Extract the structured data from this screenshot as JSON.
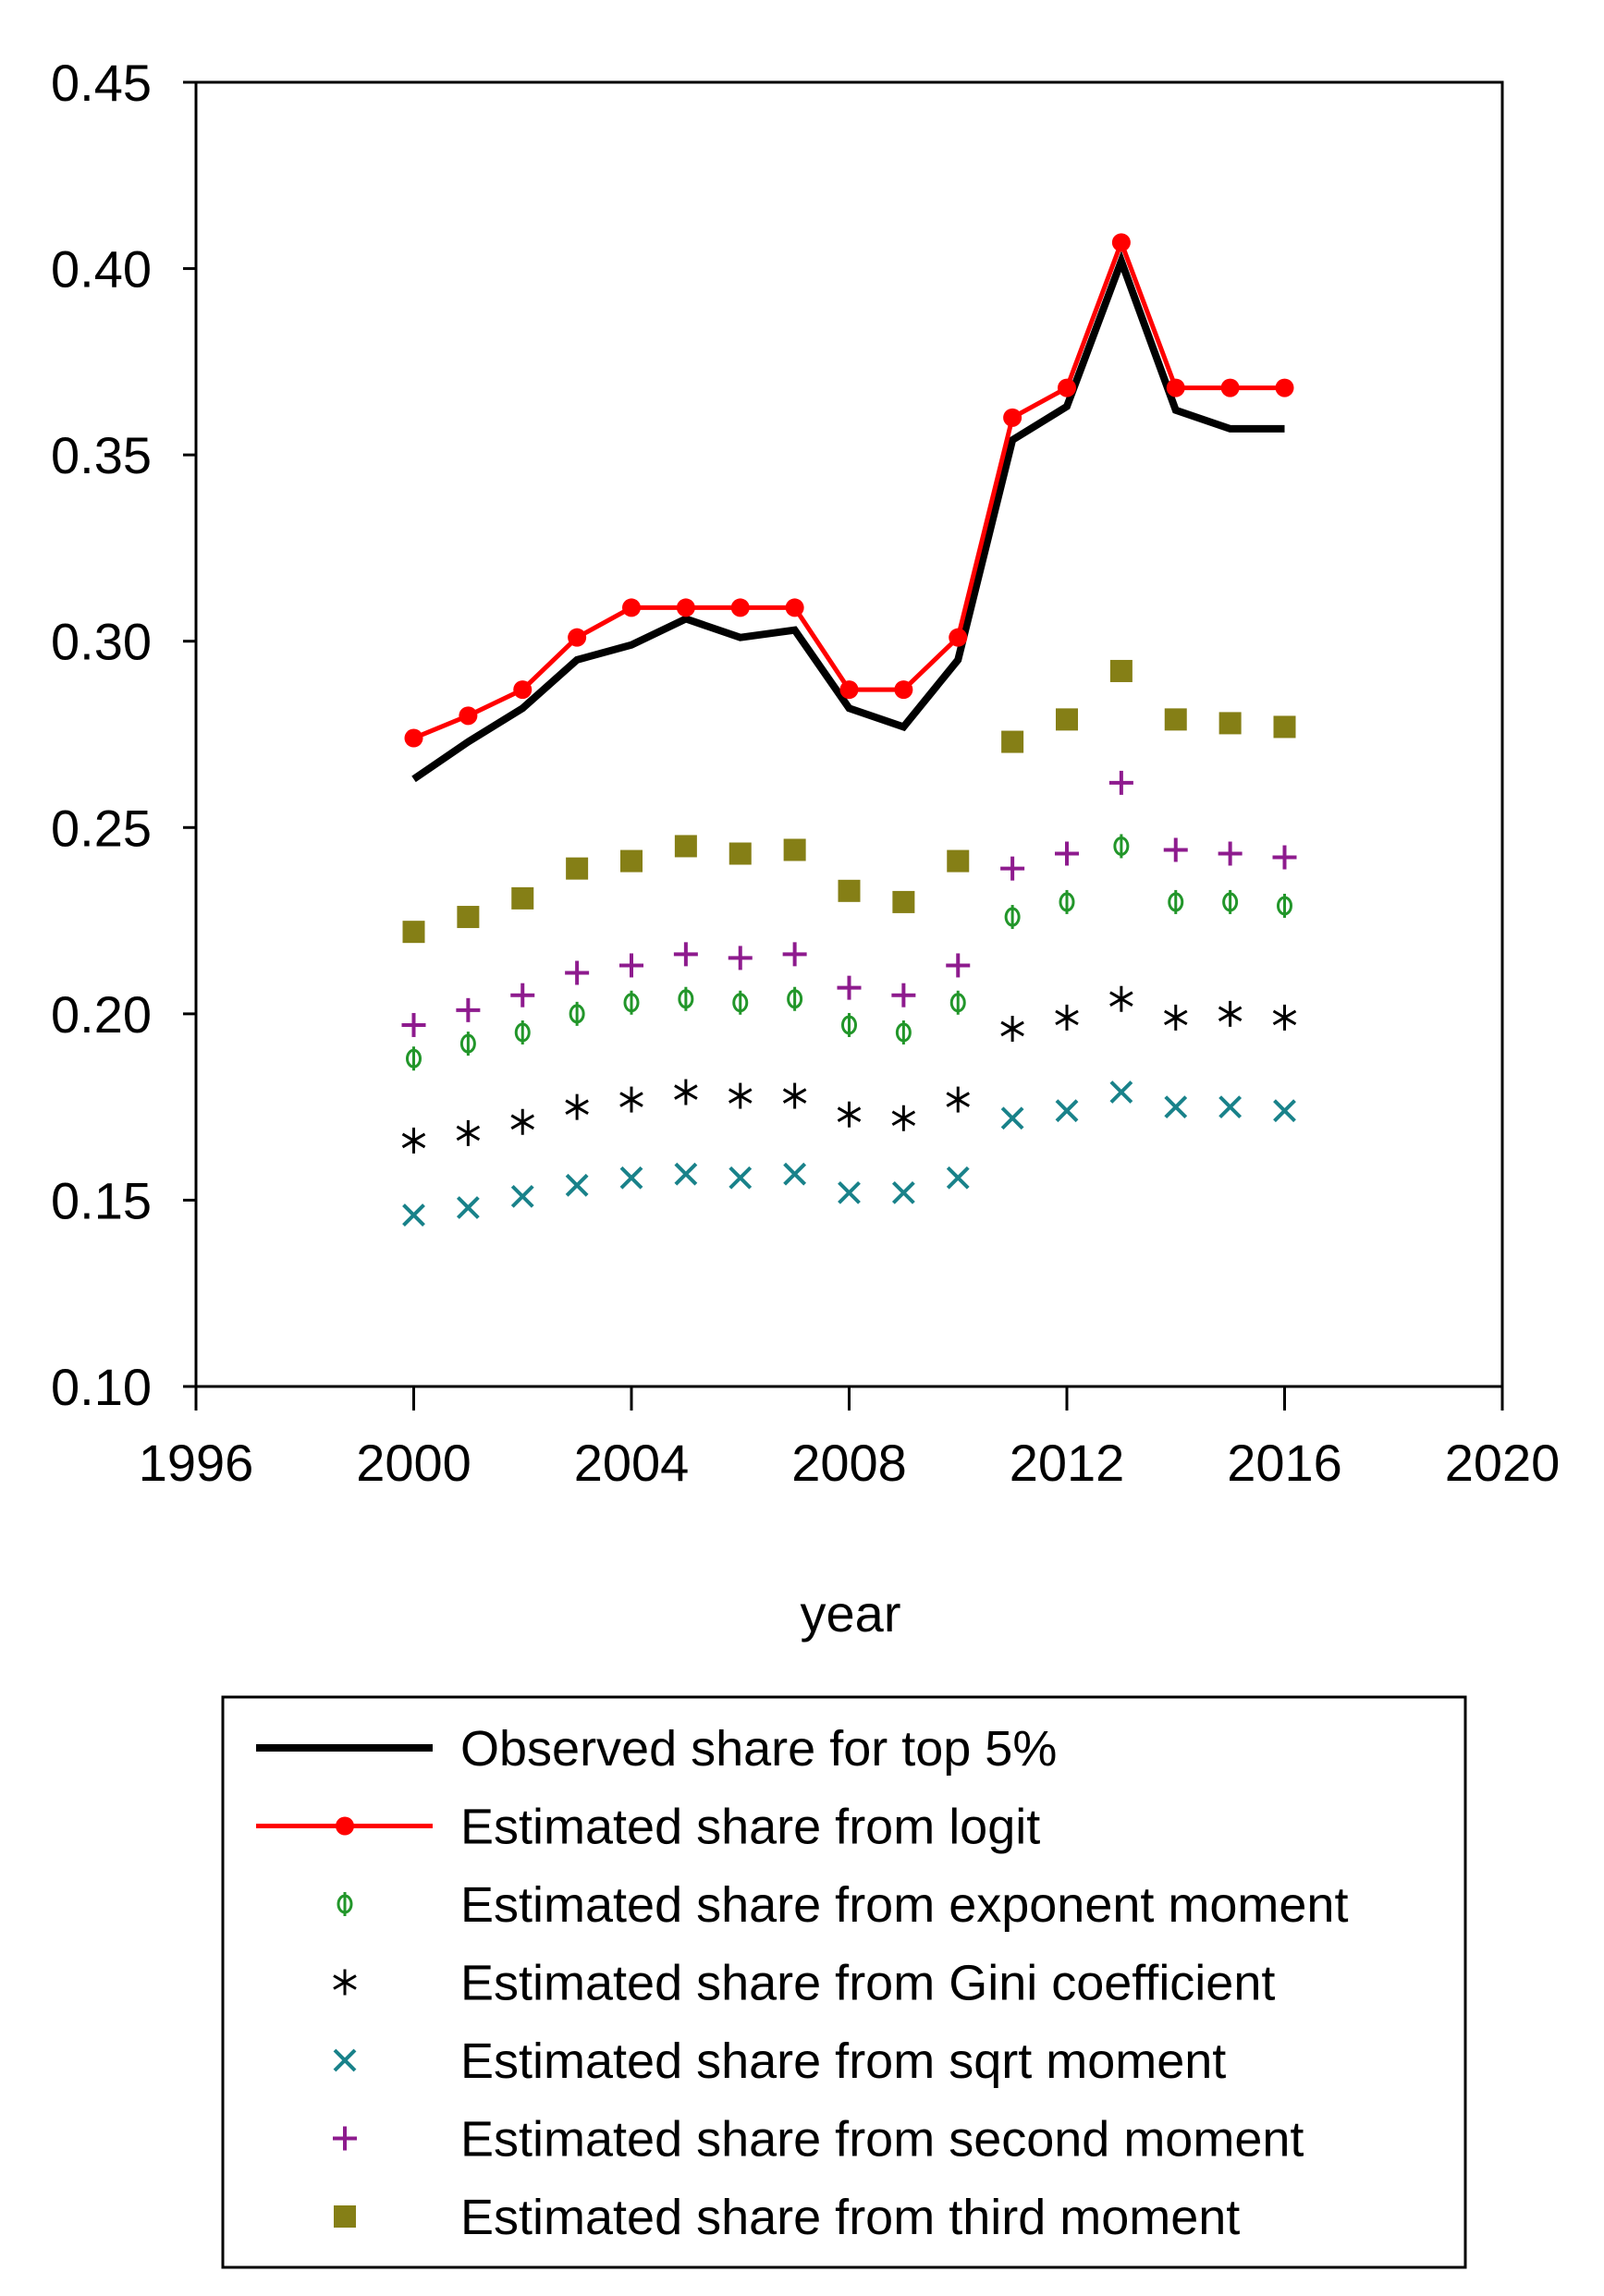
{
  "chart_data": {
    "type": "line",
    "title": "",
    "xlabel": "year",
    "ylabel": "",
    "xlim": [
      1996,
      2020
    ],
    "ylim": [
      0.1,
      0.45
    ],
    "x_ticks": [
      "1996",
      "2000",
      "2004",
      "2008",
      "2012",
      "2016",
      "2020"
    ],
    "y_ticks": [
      "0.10",
      "0.15",
      "0.20",
      "0.25",
      "0.30",
      "0.35",
      "0.40",
      "0.45"
    ],
    "x": [
      2000,
      2001,
      2002,
      2003,
      2004,
      2005,
      2006,
      2007,
      2008,
      2009,
      2010,
      2011,
      2012,
      2013,
      2014,
      2015,
      2016
    ],
    "series": [
      {
        "name": "Observed share for top 5%",
        "style": "line",
        "marker": "none",
        "color": "#000000",
        "values": [
          0.263,
          0.273,
          0.282,
          0.295,
          0.299,
          0.306,
          0.301,
          0.303,
          0.282,
          0.277,
          0.295,
          0.354,
          0.363,
          0.402,
          0.362,
          0.357,
          0.357
        ]
      },
      {
        "name": "Estimated share from logit",
        "style": "line",
        "marker": "dot",
        "color": "#ff0000",
        "values": [
          0.274,
          0.28,
          0.287,
          0.301,
          0.309,
          0.309,
          0.309,
          0.309,
          0.287,
          0.287,
          0.301,
          0.36,
          0.368,
          0.407,
          0.368,
          0.368,
          0.368
        ]
      },
      {
        "name": "Estimated share from exponent moment",
        "style": "markers",
        "marker": "phi",
        "color": "#22962a",
        "values": [
          0.188,
          0.192,
          0.195,
          0.2,
          0.203,
          0.204,
          0.203,
          0.204,
          0.197,
          0.195,
          0.203,
          0.226,
          0.23,
          0.245,
          0.23,
          0.23,
          0.229
        ]
      },
      {
        "name": "Estimated share from Gini coefficient",
        "style": "markers",
        "marker": "asterisk",
        "color": "#000000",
        "values": [
          0.166,
          0.168,
          0.171,
          0.175,
          0.177,
          0.179,
          0.178,
          0.178,
          0.173,
          0.172,
          0.177,
          0.196,
          0.199,
          0.204,
          0.199,
          0.2,
          0.199
        ]
      },
      {
        "name": "Estimated share from sqrt moment",
        "style": "markers",
        "marker": "x",
        "color": "#19828a",
        "values": [
          0.146,
          0.148,
          0.151,
          0.154,
          0.156,
          0.157,
          0.156,
          0.157,
          0.152,
          0.152,
          0.156,
          0.172,
          0.174,
          0.179,
          0.175,
          0.175,
          0.174
        ]
      },
      {
        "name": "Estimated share from second moment",
        "style": "markers",
        "marker": "plus",
        "color": "#8e1b8e",
        "values": [
          0.197,
          0.201,
          0.205,
          0.211,
          0.213,
          0.216,
          0.215,
          0.216,
          0.207,
          0.205,
          0.213,
          0.239,
          0.243,
          0.262,
          0.244,
          0.243,
          0.242
        ]
      },
      {
        "name": "Estimated share from third moment",
        "style": "markers",
        "marker": "square",
        "color": "#857f16",
        "values": [
          0.222,
          0.226,
          0.231,
          0.239,
          0.241,
          0.245,
          0.243,
          0.244,
          0.233,
          0.23,
          0.241,
          0.273,
          0.279,
          0.292,
          0.279,
          0.278,
          0.277
        ]
      }
    ],
    "legend": "below"
  }
}
